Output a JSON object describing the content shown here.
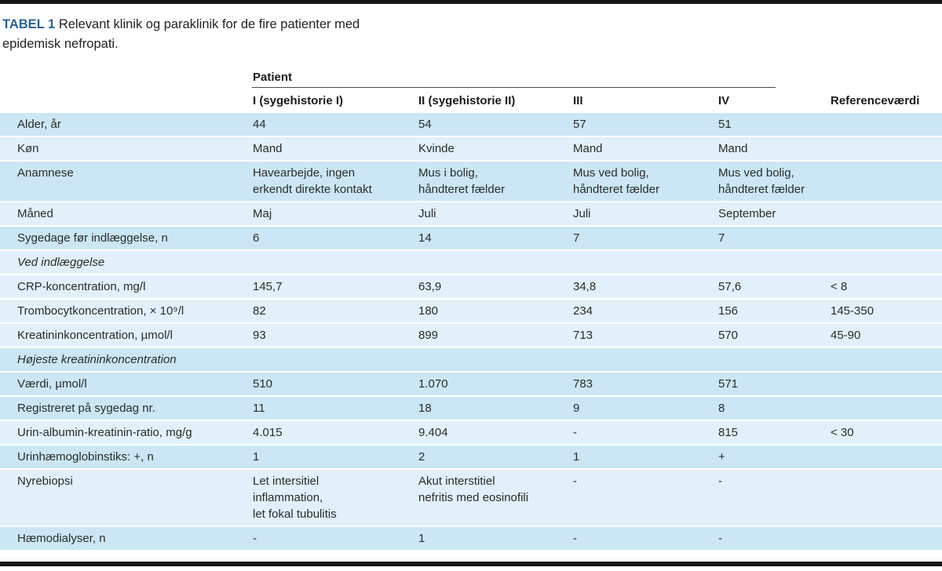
{
  "page": {
    "title_label": "TABEL 1",
    "title_text": "Relevant klinik og paraklinik for de fire patienter med\nepidemisk nefropati."
  },
  "table": {
    "group_header": "Patient",
    "columns": [
      "I (sygehistorie I)",
      "II (sygehistorie II)",
      "III",
      "IV",
      "Referenceværdi"
    ],
    "rows": [
      {
        "type": "data",
        "shade": "medium",
        "label": "Alder, år",
        "values": [
          "44",
          "54",
          "57",
          "51",
          ""
        ]
      },
      {
        "type": "data",
        "shade": "pale",
        "label": "Køn",
        "values": [
          "Mand",
          "Kvinde",
          "Mand",
          "Mand",
          ""
        ]
      },
      {
        "type": "data",
        "shade": "medium",
        "label": "Anamnese",
        "values": [
          "Havearbejde, ingen\nerkendt direkte kontakt",
          "Mus i bolig,\nhåndteret fælder",
          "Mus ved bolig,\nhåndteret fælder",
          "Mus ved bolig,\nhåndteret fælder",
          ""
        ]
      },
      {
        "type": "data",
        "shade": "pale",
        "label": "Måned",
        "values": [
          "Maj",
          "Juli",
          "Juli",
          "September",
          ""
        ]
      },
      {
        "type": "data",
        "shade": "medium",
        "label": "Sygedage før indlæggelse, n",
        "values": [
          "6",
          "14",
          "7",
          "7",
          ""
        ]
      },
      {
        "type": "section",
        "shade": "pale",
        "label": "Ved indlæggelse",
        "values": [
          "",
          "",
          "",
          "",
          ""
        ]
      },
      {
        "type": "data",
        "shade": "pale",
        "label": "CRP-koncentration, mg/l",
        "values": [
          "145,7",
          "63,9",
          "34,8",
          "57,6",
          "< 8"
        ]
      },
      {
        "type": "data",
        "shade": "pale",
        "label": "Trombocytkoncentration, × 10⁹/l",
        "values": [
          "82",
          "180",
          "234",
          "156",
          "145-350"
        ]
      },
      {
        "type": "data",
        "shade": "pale",
        "label": "Kreatininkoncentration, µmol/l",
        "values": [
          "93",
          "899",
          "713",
          "570",
          "45-90"
        ]
      },
      {
        "type": "section",
        "shade": "medium",
        "label": "Højeste kreatininkoncentration",
        "values": [
          "",
          "",
          "",
          "",
          ""
        ]
      },
      {
        "type": "data",
        "shade": "medium",
        "label": "Værdi, µmol/l",
        "values": [
          "510",
          "1.070",
          "783",
          "571",
          ""
        ]
      },
      {
        "type": "data",
        "shade": "medium",
        "label": "Registreret på sygedag nr.",
        "values": [
          "11",
          "18",
          "9",
          "8",
          ""
        ]
      },
      {
        "type": "data",
        "shade": "pale",
        "label": "Urin-albumin-kreatinin-ratio, mg/g",
        "values": [
          "4.015",
          "9.404",
          "-",
          "815",
          "< 30"
        ]
      },
      {
        "type": "data",
        "shade": "medium",
        "label": "Urinhæmoglobinstiks: +, n",
        "values": [
          "1",
          "2",
          "1",
          "+",
          ""
        ]
      },
      {
        "type": "data",
        "shade": "pale",
        "label": "Nyrebiopsi",
        "values": [
          "Let intersitiel\ninflammation,\nlet fokal tubulitis",
          "Akut interstitiel\nnefritis med eosinofili",
          "-",
          "-",
          ""
        ]
      },
      {
        "type": "data",
        "shade": "medium",
        "label": "Hæmodialyser, n",
        "values": [
          "-",
          "1",
          "-",
          "-",
          ""
        ]
      }
    ]
  },
  "colors": {
    "medium_row": "#cbe7f5",
    "pale_row": "#e1f0fa",
    "title_accent": "#2a6396",
    "bar": "#161616",
    "text": "#2b2b2b"
  }
}
